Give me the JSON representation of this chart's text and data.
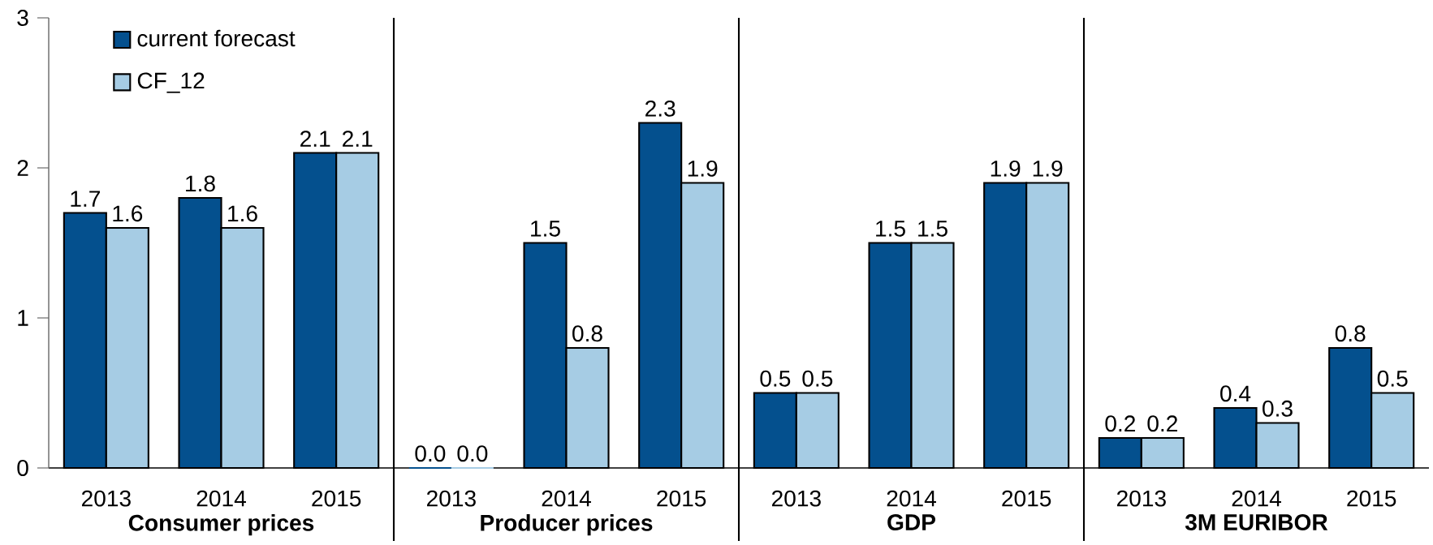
{
  "chart_data": {
    "type": "bar",
    "categories": [
      "2013",
      "2014",
      "2015",
      "2013",
      "2014",
      "2015",
      "2013",
      "2014",
      "2015",
      "2013",
      "2014",
      "2015"
    ],
    "series": [
      {
        "name": "current forecast",
        "color": "#04508e",
        "values": [
          1.7,
          1.8,
          2.1,
          0.0,
          1.5,
          2.3,
          0.5,
          1.5,
          1.9,
          0.2,
          0.4,
          0.8
        ],
        "value_labels": [
          "1.7",
          "1.8",
          "2.1",
          "0.0",
          "1.5",
          "2.3",
          "0.5",
          "1.5",
          "1.9",
          "0.2",
          "0.4",
          "0.8"
        ]
      },
      {
        "name": "CF_12",
        "color": "#a6cce4",
        "values": [
          1.6,
          1.6,
          2.1,
          0.0,
          0.8,
          1.9,
          0.5,
          1.5,
          1.9,
          0.2,
          0.3,
          0.5
        ],
        "value_labels": [
          "1.6",
          "1.6",
          "2.1",
          "0.0",
          "0.8",
          "1.9",
          "0.5",
          "1.5",
          "1.9",
          "0.2",
          "0.3",
          "0.5"
        ]
      }
    ],
    "annotations": [
      "Consumer prices",
      "Producer prices",
      "GDP",
      "3M EURIBOR"
    ],
    "ylim": [
      0,
      3
    ],
    "yticks": [
      0,
      1,
      2,
      3
    ],
    "grid": false,
    "legend": "top left"
  }
}
